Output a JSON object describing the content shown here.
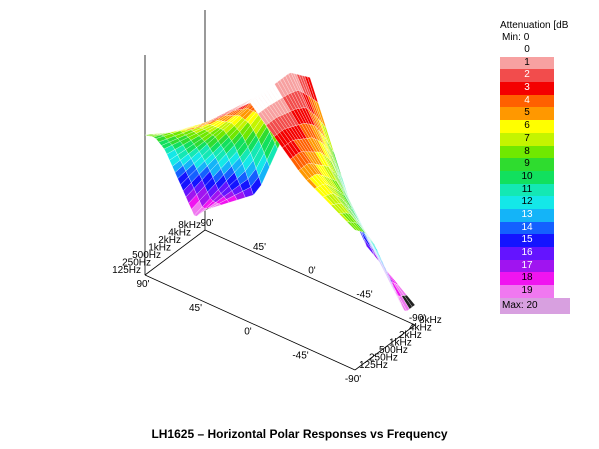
{
  "chart_data": {
    "type": "surface3d",
    "title": "LH1625 – Horizontal Polar Responses vs Frequency",
    "frequency_ticks": [
      "125Hz",
      "250Hz",
      "500Hz",
      "1kHz",
      "2kHz",
      "4kHz",
      "8kHz"
    ],
    "angle_ticks": [
      "90'",
      "45'",
      "0'",
      "-45'",
      "-90'"
    ],
    "angle_ticks_back": [
      "-90'",
      "-45'",
      "0'",
      "45'",
      "90'"
    ],
    "frequencies_hz": [
      125,
      250,
      500,
      1000,
      2000,
      4000,
      8000
    ],
    "angles_deg": [
      -90,
      -45,
      0,
      45,
      90
    ],
    "attenuation_db": [
      [
        8,
        5,
        0,
        5,
        8
      ],
      [
        9,
        5,
        0,
        5,
        9
      ],
      [
        11,
        6,
        0,
        6,
        11
      ],
      [
        14,
        7,
        0,
        7,
        14
      ],
      [
        17,
        9,
        0,
        9,
        17
      ],
      [
        20,
        12,
        1,
        12,
        20
      ],
      [
        20,
        16,
        2,
        16,
        20
      ]
    ],
    "legend": {
      "title": "Attenuation [dB",
      "min_label": "Min:",
      "min_value": "0",
      "max_label": "Max:",
      "max_value": "20",
      "levels": [
        {
          "label": "0",
          "color": "#ffffff"
        },
        {
          "label": "1",
          "color": "#f7a1a1"
        },
        {
          "label": "2",
          "color": "#f24c4c"
        },
        {
          "label": "3",
          "color": "#f40000"
        },
        {
          "label": "4",
          "color": "#ff6000"
        },
        {
          "label": "5",
          "color": "#ff9800"
        },
        {
          "label": "6",
          "color": "#ffff00"
        },
        {
          "label": "7",
          "color": "#c4f400"
        },
        {
          "label": "8",
          "color": "#70e800"
        },
        {
          "label": "9",
          "color": "#2fdc2f"
        },
        {
          "label": "10",
          "color": "#12e05e"
        },
        {
          "label": "11",
          "color": "#14e8b4"
        },
        {
          "label": "12",
          "color": "#14e8e8"
        },
        {
          "label": "13",
          "color": "#14b4f8"
        },
        {
          "label": "14",
          "color": "#1460ff"
        },
        {
          "label": "15",
          "color": "#1414ff"
        },
        {
          "label": "16",
          "color": "#6414ff"
        },
        {
          "label": "17",
          "color": "#a014f0"
        },
        {
          "label": "18",
          "color": "#f014f0"
        },
        {
          "label": "19",
          "color": "#f078f0"
        }
      ],
      "max_color": "#d8a0e0"
    }
  }
}
